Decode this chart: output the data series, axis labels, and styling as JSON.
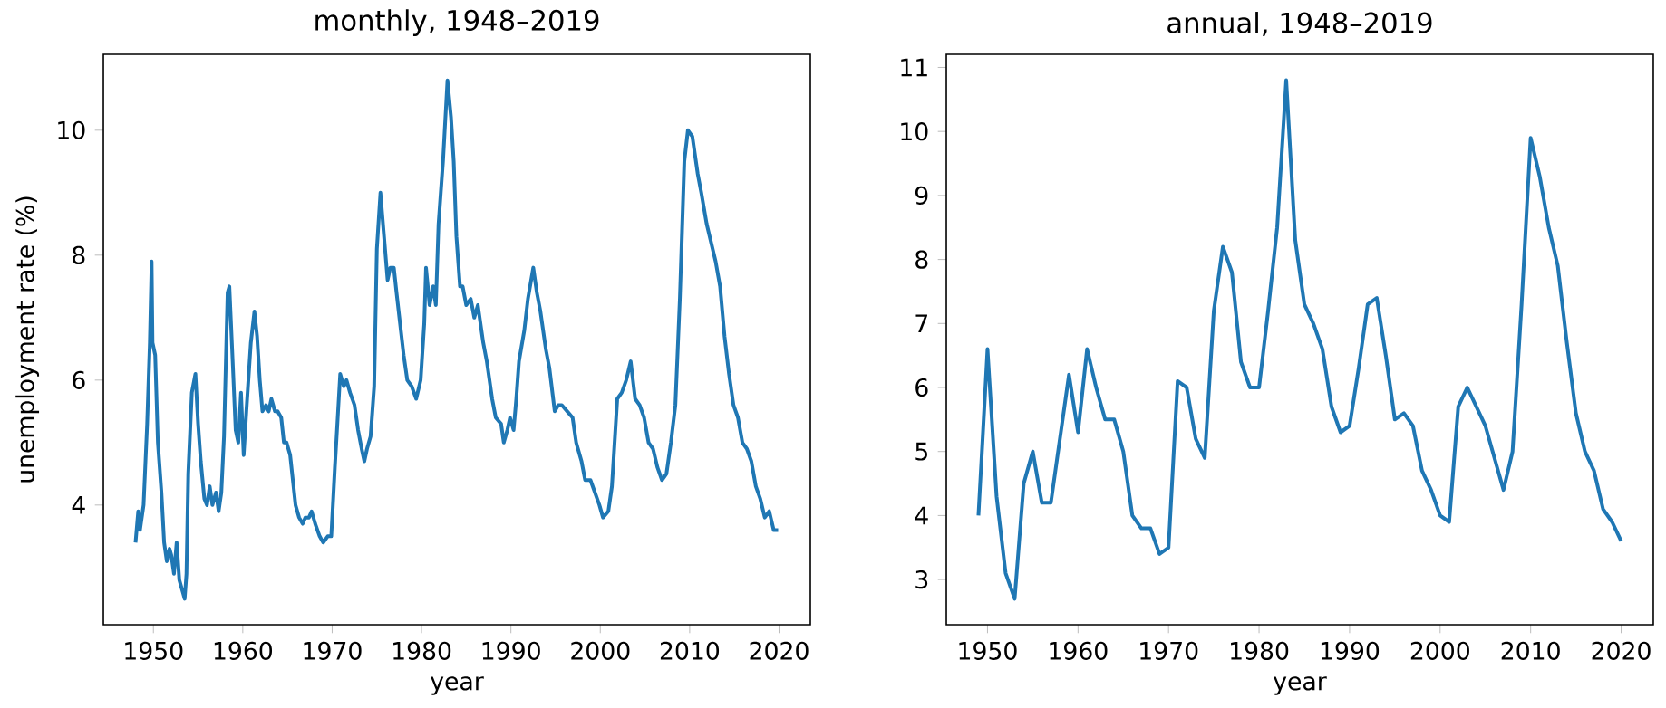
{
  "chart_data": [
    {
      "type": "line",
      "title": "monthly, 1948–2019",
      "xlabel": "year",
      "ylabel": "unemployment rate (%)",
      "color": "#1f77b4",
      "xlim": [
        1944.4,
        2023.5
      ],
      "ylim": [
        2.085,
        11.215
      ],
      "xticks": [
        1950,
        1960,
        1970,
        1980,
        1990,
        2000,
        2010,
        2020
      ],
      "yticks": [
        4,
        6,
        8,
        10
      ],
      "x": [
        1948.0,
        1948.3,
        1948.5,
        1948.9,
        1949.3,
        1949.6,
        1949.8,
        1949.9,
        1950.2,
        1950.5,
        1950.9,
        1951.2,
        1951.5,
        1951.8,
        1952.0,
        1952.3,
        1952.6,
        1952.9,
        1953.3,
        1953.5,
        1953.7,
        1953.9,
        1954.3,
        1954.7,
        1955.0,
        1955.3,
        1955.7,
        1956.0,
        1956.3,
        1956.6,
        1957.0,
        1957.3,
        1957.6,
        1957.9,
        1958.3,
        1958.5,
        1958.9,
        1959.2,
        1959.5,
        1959.8,
        1960.1,
        1960.4,
        1960.9,
        1961.3,
        1961.6,
        1961.9,
        1962.2,
        1962.6,
        1962.9,
        1963.2,
        1963.6,
        1963.9,
        1964.3,
        1964.6,
        1964.9,
        1965.3,
        1965.9,
        1966.3,
        1966.7,
        1967.0,
        1967.4,
        1967.7,
        1968.1,
        1968.6,
        1969.0,
        1969.5,
        1969.9,
        1970.3,
        1970.9,
        1971.3,
        1971.6,
        1972.0,
        1972.5,
        1972.9,
        1973.3,
        1973.6,
        1973.9,
        1974.3,
        1974.7,
        1975.0,
        1975.4,
        1975.8,
        1976.2,
        1976.5,
        1976.9,
        1977.2,
        1977.6,
        1978.0,
        1978.4,
        1978.9,
        1979.4,
        1979.9,
        1980.3,
        1980.5,
        1980.9,
        1981.3,
        1981.6,
        1981.9,
        1982.4,
        1982.9,
        1983.3,
        1983.6,
        1983.9,
        1984.3,
        1984.6,
        1985.0,
        1985.5,
        1985.9,
        1986.3,
        1986.9,
        1987.3,
        1987.9,
        1988.3,
        1988.9,
        1989.2,
        1989.6,
        1989.9,
        1990.3,
        1990.6,
        1990.9,
        1991.5,
        1991.9,
        1992.5,
        1992.9,
        1993.3,
        1993.9,
        1994.3,
        1994.9,
        1995.3,
        1995.7,
        1996.3,
        1996.9,
        1997.3,
        1997.9,
        1998.3,
        1998.9,
        1999.4,
        1999.9,
        2000.3,
        2000.9,
        2001.3,
        2001.9,
        2002.4,
        2002.9,
        2003.4,
        2003.9,
        2004.4,
        2004.9,
        2005.4,
        2005.9,
        2006.4,
        2006.9,
        2007.4,
        2007.9,
        2008.4,
        2008.9,
        2009.4,
        2009.8,
        2010.3,
        2010.9,
        2011.3,
        2011.9,
        2012.4,
        2012.9,
        2013.4,
        2013.9,
        2014.4,
        2014.9,
        2015.4,
        2015.9,
        2016.4,
        2016.9,
        2017.4,
        2017.9,
        2018.4,
        2018.9,
        2019.4,
        2019.9
      ],
      "values": [
        3.4,
        3.9,
        3.6,
        4.0,
        5.3,
        6.6,
        7.9,
        6.6,
        6.4,
        5.0,
        4.2,
        3.4,
        3.1,
        3.3,
        3.2,
        2.9,
        3.4,
        2.8,
        2.6,
        2.5,
        2.9,
        4.5,
        5.8,
        6.1,
        5.3,
        4.7,
        4.1,
        4.0,
        4.3,
        4.0,
        4.2,
        3.9,
        4.2,
        5.1,
        7.4,
        7.5,
        6.2,
        5.2,
        5.0,
        5.8,
        4.8,
        5.5,
        6.6,
        7.1,
        6.7,
        6.0,
        5.5,
        5.6,
        5.5,
        5.7,
        5.5,
        5.5,
        5.4,
        5.0,
        5.0,
        4.8,
        4.0,
        3.8,
        3.7,
        3.8,
        3.8,
        3.9,
        3.7,
        3.5,
        3.4,
        3.5,
        3.5,
        4.6,
        6.1,
        5.9,
        6.0,
        5.8,
        5.6,
        5.2,
        4.9,
        4.7,
        4.9,
        5.1,
        5.9,
        8.1,
        9.0,
        8.3,
        7.6,
        7.8,
        7.8,
        7.4,
        6.9,
        6.4,
        6.0,
        5.9,
        5.7,
        6.0,
        6.9,
        7.8,
        7.2,
        7.5,
        7.2,
        8.5,
        9.5,
        10.8,
        10.2,
        9.5,
        8.3,
        7.5,
        7.5,
        7.2,
        7.3,
        7.0,
        7.2,
        6.6,
        6.3,
        5.7,
        5.4,
        5.3,
        5.0,
        5.2,
        5.4,
        5.2,
        5.7,
        6.3,
        6.8,
        7.3,
        7.8,
        7.4,
        7.1,
        6.5,
        6.2,
        5.5,
        5.6,
        5.6,
        5.5,
        5.4,
        5.0,
        4.7,
        4.4,
        4.4,
        4.2,
        4.0,
        3.8,
        3.9,
        4.3,
        5.7,
        5.8,
        6.0,
        6.3,
        5.7,
        5.6,
        5.4,
        5.0,
        4.9,
        4.6,
        4.4,
        4.5,
        5.0,
        5.6,
        7.3,
        9.5,
        10.0,
        9.9,
        9.3,
        9.0,
        8.5,
        8.2,
        7.9,
        7.5,
        6.7,
        6.1,
        5.6,
        5.4,
        5.0,
        4.9,
        4.7,
        4.3,
        4.1,
        3.8,
        3.9,
        3.6,
        3.6
      ]
    },
    {
      "type": "line",
      "title": "annual, 1948–2019",
      "xlabel": "year",
      "color": "#1f77b4",
      "xlim": [
        1945.45,
        2023.55
      ],
      "ylim": [
        2.295,
        11.205
      ],
      "xticks": [
        1950,
        1960,
        1970,
        1980,
        1990,
        2000,
        2010,
        2020
      ],
      "yticks": [
        3,
        4,
        5,
        6,
        7,
        8,
        9,
        10,
        11
      ],
      "x": [
        1949,
        1950,
        1951,
        1952,
        1953,
        1954,
        1955,
        1956,
        1957,
        1958,
        1959,
        1960,
        1961,
        1962,
        1963,
        1964,
        1965,
        1966,
        1967,
        1968,
        1969,
        1970,
        1971,
        1972,
        1973,
        1974,
        1975,
        1976,
        1977,
        1978,
        1979,
        1980,
        1981,
        1982,
        1983,
        1984,
        1985,
        1986,
        1987,
        1988,
        1989,
        1990,
        1991,
        1992,
        1993,
        1994,
        1995,
        1996,
        1997,
        1998,
        1999,
        2000,
        2001,
        2002,
        2003,
        2004,
        2005,
        2006,
        2007,
        2008,
        2009,
        2010,
        2011,
        2012,
        2013,
        2014,
        2015,
        2016,
        2017,
        2018,
        2019,
        2020
      ],
      "values": [
        4.0,
        6.6,
        4.3,
        3.1,
        2.7,
        4.5,
        5.0,
        4.2,
        4.2,
        5.2,
        6.2,
        5.3,
        6.6,
        6.0,
        5.5,
        5.5,
        5.0,
        4.0,
        3.8,
        3.8,
        3.4,
        3.5,
        6.1,
        6.0,
        5.2,
        4.9,
        7.2,
        8.2,
        7.8,
        6.4,
        6.0,
        6.0,
        7.2,
        8.5,
        10.8,
        8.3,
        7.3,
        7.0,
        6.6,
        5.7,
        5.3,
        5.4,
        6.3,
        7.3,
        7.4,
        6.5,
        5.5,
        5.6,
        5.4,
        4.7,
        4.4,
        4.0,
        3.9,
        5.7,
        6.0,
        5.7,
        5.4,
        4.9,
        4.4,
        5.0,
        7.3,
        9.9,
        9.3,
        8.5,
        7.9,
        6.7,
        5.6,
        5.0,
        4.7,
        4.1,
        3.9,
        3.6
      ]
    }
  ]
}
